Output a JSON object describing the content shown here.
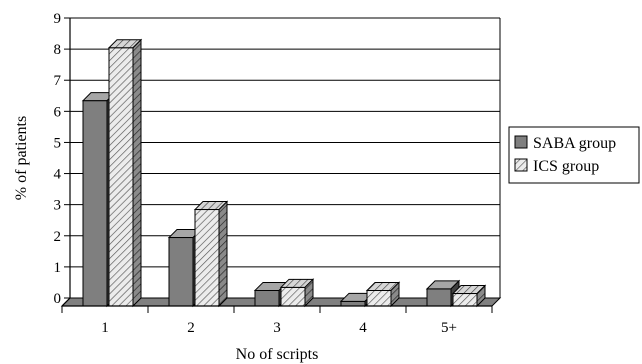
{
  "chart_data": {
    "type": "bar",
    "style": "3d-column",
    "categories": [
      "1",
      "2",
      "3",
      "4",
      "5+"
    ],
    "series": [
      {
        "name": "SABA group",
        "values": [
          6.6,
          2.2,
          0.5,
          0.15,
          0.55
        ],
        "color": "#7f7f7f",
        "pattern": "solid"
      },
      {
        "name": "ICS group",
        "values": [
          8.3,
          3.1,
          0.6,
          0.5,
          0.4
        ],
        "color": "#bfbfbf",
        "pattern": "diagonal-hatch"
      }
    ],
    "xlabel": "No of scripts",
    "ylabel": "% of patients",
    "ylim": [
      0,
      9
    ],
    "yticks": [
      "0",
      "1",
      "2",
      "3",
      "4",
      "5",
      "6",
      "7",
      "8",
      "9"
    ],
    "grid": true,
    "legend": "right"
  }
}
